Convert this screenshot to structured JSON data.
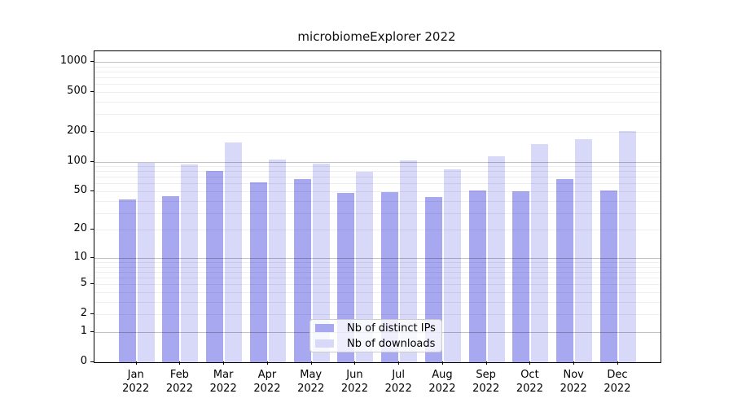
{
  "title": "microbiomeExplorer 2022",
  "colors": {
    "distinct_ips": "#a8a8f0",
    "downloads": "#d8d8f8",
    "axis": "#000000",
    "legend_border": "#cccccc"
  },
  "legend": {
    "position": "bottom-center"
  },
  "chart_data": {
    "type": "bar",
    "title": "microbiomeExplorer 2022",
    "categories": [
      "Jan 2022",
      "Feb 2022",
      "Mar 2022",
      "Apr 2022",
      "May 2022",
      "Jun 2022",
      "Jul 2022",
      "Aug 2022",
      "Sep 2022",
      "Oct 2022",
      "Nov 2022",
      "Dec 2022"
    ],
    "series": [
      {
        "name": "Nb of distinct IPs",
        "color": "#a8a8f0",
        "values": [
          41,
          45,
          81,
          62,
          67,
          48,
          49,
          44,
          51,
          50,
          67,
          51
        ]
      },
      {
        "name": "Nb of downloads",
        "color": "#d8d8f8",
        "values": [
          97,
          93,
          155,
          105,
          95,
          79,
          102,
          83,
          113,
          150,
          168,
          202
        ]
      }
    ],
    "xlabel": "",
    "ylabel": "",
    "yscale": "log10(value+1)",
    "yticks": [
      0,
      1,
      2,
      5,
      10,
      20,
      50,
      100,
      200,
      500,
      1000
    ],
    "ylim": [
      0,
      1276
    ],
    "grid": true,
    "legend_position": "bottom-center"
  }
}
